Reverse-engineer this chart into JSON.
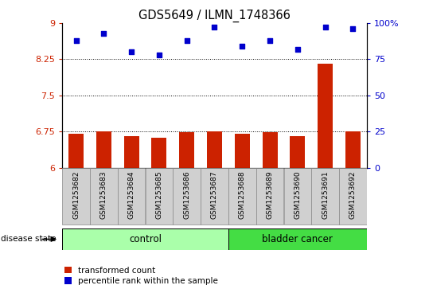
{
  "title": "GDS5649 / ILMN_1748366",
  "samples": [
    "GSM1253682",
    "GSM1253683",
    "GSM1253684",
    "GSM1253685",
    "GSM1253686",
    "GSM1253687",
    "GSM1253688",
    "GSM1253689",
    "GSM1253690",
    "GSM1253691",
    "GSM1253692"
  ],
  "transformed_count": [
    6.7,
    6.75,
    6.65,
    6.62,
    6.73,
    6.76,
    6.7,
    6.73,
    6.65,
    8.15,
    6.75
  ],
  "percentile_rank": [
    88,
    93,
    80,
    78,
    88,
    97,
    84,
    88,
    82,
    97,
    96
  ],
  "bar_color": "#cc2200",
  "dot_color": "#0000cc",
  "ylim_left": [
    6,
    9
  ],
  "ylim_right": [
    0,
    100
  ],
  "yticks_left": [
    6,
    6.75,
    7.5,
    8.25,
    9
  ],
  "ytick_labels_left": [
    "6",
    "6.75",
    "7.5",
    "8.25",
    "9"
  ],
  "yticks_right": [
    0,
    25,
    50,
    75,
    100
  ],
  "ytick_labels_right": [
    "0",
    "25",
    "50",
    "75",
    "100%"
  ],
  "hlines": [
    6.75,
    7.5,
    8.25
  ],
  "control_count": 6,
  "control_label": "control",
  "cancer_label": "bladder cancer",
  "control_color": "#aaffaa",
  "cancer_color": "#44dd44",
  "disease_state_label": "disease state",
  "legend_items": [
    {
      "label": "transformed count",
      "color": "#cc2200"
    },
    {
      "label": "percentile rank within the sample",
      "color": "#0000cc"
    }
  ],
  "bar_width": 0.55,
  "background_color": "#ffffff",
  "tick_color_left": "#cc2200",
  "tick_color_right": "#0000cc"
}
